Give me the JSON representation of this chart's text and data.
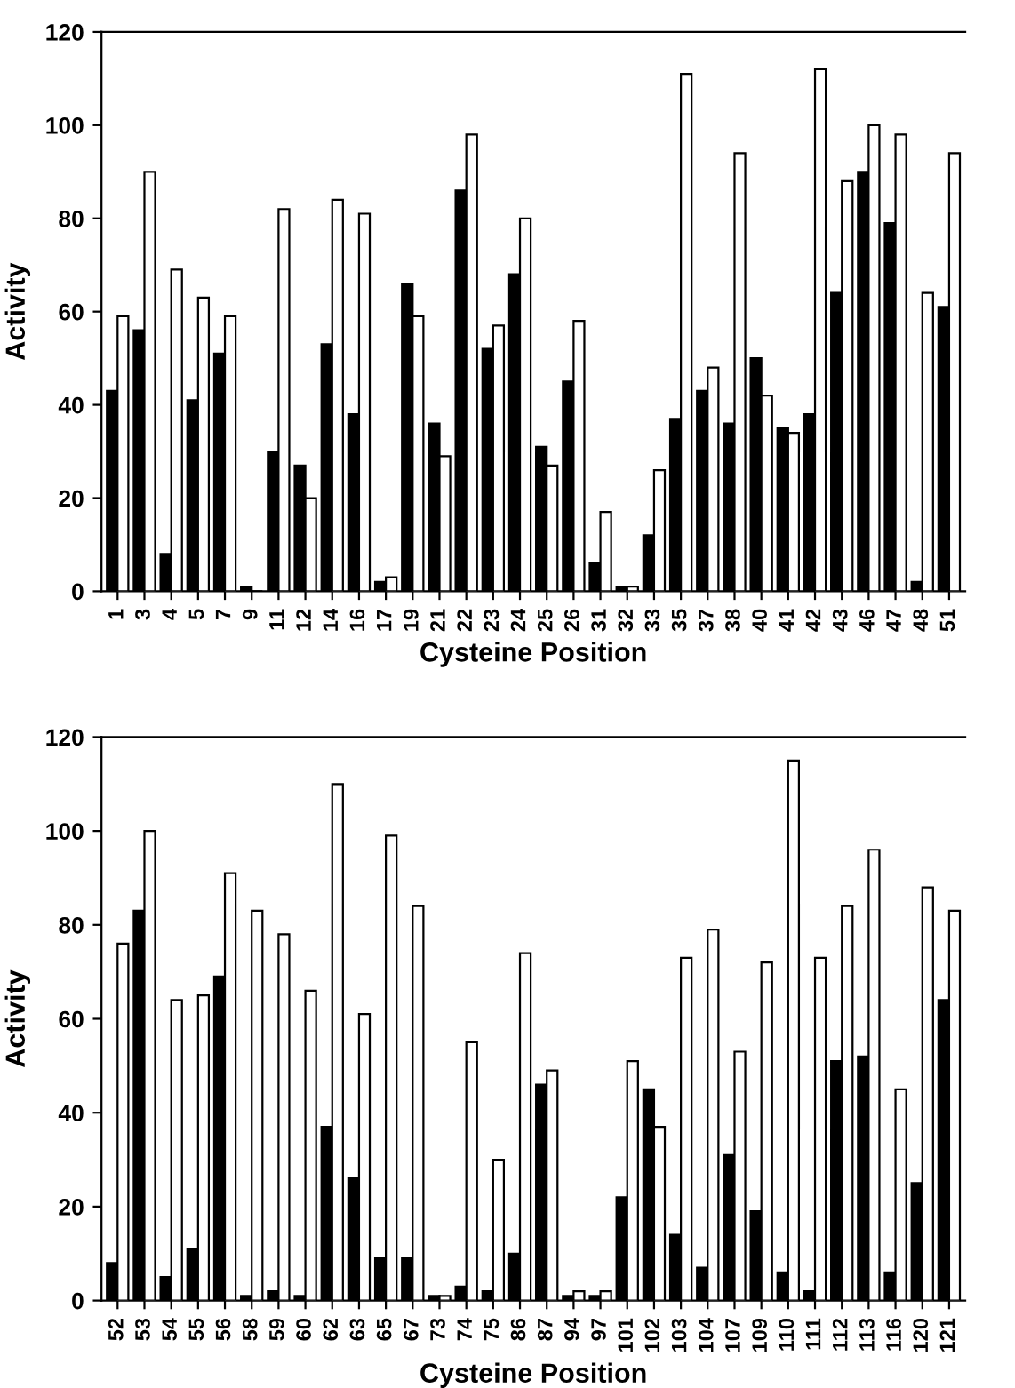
{
  "chart_data": [
    {
      "type": "bar",
      "xlabel": "Cysteine Position",
      "ylabel": "Activity",
      "categories": [
        "1",
        "3",
        "4",
        "5",
        "7",
        "9",
        "11",
        "12",
        "14",
        "16",
        "17",
        "19",
        "21",
        "22",
        "23",
        "24",
        "25",
        "26",
        "31",
        "32",
        "33",
        "35",
        "37",
        "38",
        "40",
        "41",
        "42",
        "43",
        "46",
        "47",
        "48",
        "51"
      ],
      "series": [
        {
          "color": "#000000",
          "values": [
            43,
            56,
            8,
            41,
            51,
            1,
            30,
            27,
            53,
            38,
            2,
            66,
            36,
            86,
            52,
            68,
            31,
            45,
            6,
            1,
            12,
            37,
            43,
            36,
            50,
            35,
            38,
            64,
            90,
            79,
            2,
            61
          ]
        },
        {
          "color": "#ffffff",
          "values": [
            59,
            90,
            69,
            63,
            59,
            0,
            82,
            20,
            84,
            81,
            3,
            59,
            29,
            98,
            57,
            80,
            27,
            58,
            17,
            1,
            26,
            111,
            48,
            94,
            42,
            34,
            112,
            88,
            100,
            98,
            64,
            94
          ]
        }
      ],
      "ylim": [
        0,
        120
      ],
      "yticks": [
        0,
        20,
        40,
        60,
        80,
        100,
        120
      ],
      "grid": false
    },
    {
      "type": "bar",
      "xlabel": "Cysteine Position",
      "ylabel": "Activity",
      "categories": [
        "52",
        "53",
        "54",
        "55",
        "56",
        "58",
        "59",
        "60",
        "62",
        "63",
        "65",
        "67",
        "73",
        "74",
        "75",
        "86",
        "87",
        "94",
        "97",
        "101",
        "102",
        "103",
        "104",
        "107",
        "109",
        "110",
        "111",
        "112",
        "113",
        "116",
        "120",
        "121"
      ],
      "series": [
        {
          "color": "#000000",
          "values": [
            8,
            83,
            5,
            11,
            69,
            1,
            2,
            1,
            37,
            26,
            9,
            9,
            1,
            3,
            2,
            10,
            46,
            1,
            1,
            22,
            45,
            14,
            7,
            31,
            19,
            6,
            2,
            51,
            52,
            6,
            25,
            64
          ]
        },
        {
          "color": "#ffffff",
          "values": [
            76,
            100,
            64,
            65,
            91,
            83,
            78,
            66,
            110,
            61,
            99,
            84,
            1,
            55,
            30,
            74,
            49,
            2,
            2,
            51,
            37,
            73,
            79,
            53,
            72,
            115,
            73,
            84,
            96,
            45,
            88,
            83
          ]
        }
      ],
      "ylim": [
        0,
        120
      ],
      "yticks": [
        0,
        20,
        40,
        60,
        80,
        100,
        120
      ],
      "grid": false
    }
  ]
}
